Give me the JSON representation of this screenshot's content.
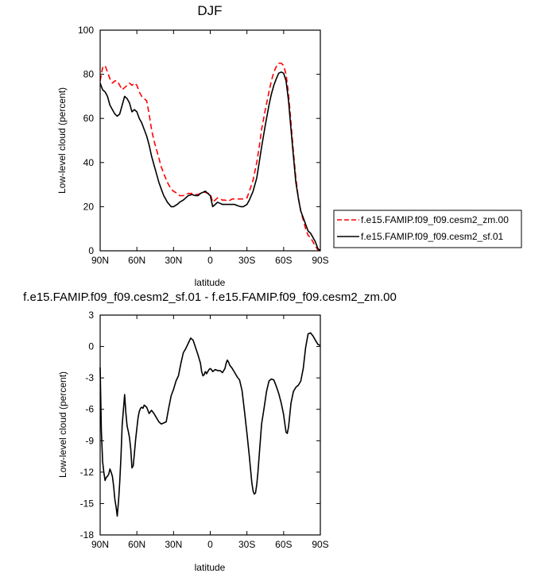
{
  "chart_data": [
    {
      "type": "line",
      "title": "DJF",
      "xlabel": "latitude",
      "ylabel": "Low-level cloud (percent)",
      "xlim": [
        90,
        -90
      ],
      "ylim": [
        0,
        100
      ],
      "x_ticks": [
        90,
        60,
        30,
        0,
        -30,
        -60,
        -90
      ],
      "x_tick_labels": [
        "90N",
        "60N",
        "30N",
        "0",
        "30S",
        "60S",
        "90S"
      ],
      "y_ticks": [
        0,
        20,
        40,
        60,
        80,
        100
      ],
      "y_tick_labels": [
        "0",
        "20",
        "40",
        "60",
        "80",
        "100"
      ],
      "legend_position": "right",
      "series": [
        {
          "name": "f.e15.FAMIP.f09_f09.cesm2_zm.00",
          "color": "#ff0000",
          "dash": "dashed",
          "x": [
            90,
            88,
            86,
            84,
            82,
            80,
            78,
            76,
            74,
            72,
            70,
            68,
            66,
            64,
            62,
            60,
            58,
            56,
            54,
            52,
            50,
            48,
            46,
            44,
            42,
            40,
            38,
            35,
            32,
            30,
            27,
            25,
            22,
            20,
            18,
            15,
            12,
            10,
            8,
            6,
            4,
            2,
            0,
            -2,
            -4,
            -6,
            -8,
            -10,
            -12,
            -15,
            -18,
            -20,
            -22,
            -25,
            -27,
            -30,
            -32,
            -35,
            -38,
            -40,
            -42,
            -45,
            -48,
            -50,
            -52,
            -54,
            -56,
            -58,
            -60,
            -62,
            -64,
            -66,
            -68,
            -70,
            -72,
            -74,
            -76,
            -78,
            -80,
            -82,
            -84,
            -86,
            -88,
            -90
          ],
          "y": [
            77,
            83,
            84,
            81,
            78,
            76,
            77,
            77,
            75,
            73,
            74,
            75,
            76,
            75,
            76,
            75,
            72,
            70,
            69,
            68,
            62,
            55,
            50,
            46,
            42,
            38,
            35,
            31,
            28,
            27,
            26,
            25,
            25,
            25.5,
            26,
            26,
            25.5,
            25.5,
            26,
            26.5,
            26.5,
            26,
            26,
            22,
            23,
            24,
            23.5,
            23,
            23,
            22.5,
            23.5,
            23.5,
            23.5,
            23.5,
            23.5,
            24,
            27,
            32,
            40,
            47,
            55,
            64,
            72,
            77,
            81,
            83.5,
            85,
            85,
            84,
            80,
            71,
            58,
            45,
            33,
            24,
            18,
            14,
            10,
            7,
            6,
            4,
            2,
            0.5,
            0
          ]
        },
        {
          "name": "f.e15.FAMIP.f09_f09.cesm2_sf.01",
          "color": "#000000",
          "dash": "solid",
          "x": [
            90,
            88,
            86,
            84,
            82,
            80,
            78,
            76,
            74,
            72,
            70,
            68,
            66,
            64,
            62,
            60,
            58,
            56,
            54,
            52,
            50,
            48,
            46,
            44,
            42,
            40,
            38,
            35,
            32,
            30,
            27,
            25,
            22,
            20,
            18,
            15,
            12,
            10,
            8,
            6,
            4,
            2,
            0,
            -2,
            -4,
            -6,
            -8,
            -10,
            -12,
            -15,
            -18,
            -20,
            -22,
            -25,
            -27,
            -30,
            -32,
            -35,
            -38,
            -40,
            -42,
            -45,
            -48,
            -50,
            -52,
            -54,
            -56,
            -58,
            -60,
            -62,
            -64,
            -66,
            -68,
            -70,
            -72,
            -74,
            -76,
            -78,
            -80,
            -82,
            -84,
            -86,
            -88,
            -90
          ],
          "y": [
            76,
            73,
            72,
            70,
            66,
            64,
            62,
            61,
            62,
            66,
            70,
            69,
            67,
            63,
            64,
            63,
            60,
            58,
            55,
            52,
            48,
            43,
            39,
            35,
            31,
            28,
            25,
            22,
            20,
            20,
            21,
            22,
            23,
            24,
            25,
            25.5,
            25,
            25,
            26,
            26.5,
            27,
            26,
            25,
            20,
            21,
            22,
            21.5,
            21,
            21,
            21,
            21,
            21,
            20.5,
            20,
            20,
            21,
            23,
            27,
            33,
            40,
            47,
            57,
            66,
            71,
            75,
            78,
            80.5,
            81,
            80.5,
            77,
            68,
            55,
            43,
            31,
            24,
            18,
            15,
            12,
            9,
            8,
            6,
            4,
            1,
            0
          ]
        }
      ]
    },
    {
      "type": "line",
      "title": "f.e15.FAMIP.f09_f09.cesm2_sf.01 - f.e15.FAMIP.f09_f09.cesm2_zm.00",
      "xlabel": "latitude",
      "ylabel": "Low-level cloud (percent)",
      "xlim": [
        90,
        -90
      ],
      "ylim": [
        -18,
        3
      ],
      "x_ticks": [
        90,
        60,
        30,
        0,
        -30,
        -60,
        -90
      ],
      "x_tick_labels": [
        "90N",
        "60N",
        "30N",
        "0",
        "30S",
        "60S",
        "90S"
      ],
      "y_ticks": [
        3,
        0,
        -3,
        -6,
        -9,
        -12,
        -15,
        -18
      ],
      "y_tick_labels": [
        "3",
        "0",
        "-3",
        "-6",
        "-9",
        "-12",
        "-15",
        "-18"
      ],
      "series": [
        {
          "name": "",
          "color": "#000000",
          "dash": "solid",
          "x": [
            90,
            89,
            88,
            87,
            86,
            85,
            84,
            83,
            82,
            81,
            80,
            79,
            78,
            77,
            76,
            75,
            74,
            73,
            72,
            71,
            70,
            69,
            68,
            67,
            66,
            65,
            64,
            63,
            62,
            61,
            60,
            59,
            58,
            57,
            56,
            55,
            54,
            52,
            50,
            48,
            46,
            44,
            42,
            40,
            38,
            36,
            34,
            32,
            30,
            28,
            26,
            24,
            22,
            20,
            18,
            16,
            14,
            12,
            10,
            8,
            7,
            6,
            5,
            4,
            3,
            2,
            1,
            0,
            -1,
            -2,
            -4,
            -6,
            -8,
            -10,
            -12,
            -13,
            -14,
            -15,
            -16,
            -18,
            -20,
            -22,
            -24,
            -26,
            -28,
            -30,
            -32,
            -33,
            -34,
            -35,
            -36,
            -37,
            -38,
            -39,
            -40,
            -41,
            -42,
            -44,
            -46,
            -48,
            -50,
            -52,
            -54,
            -56,
            -58,
            -60,
            -61,
            -62,
            -63,
            -64,
            -65,
            -66,
            -68,
            -70,
            -72,
            -74,
            -76,
            -78,
            -80,
            -82,
            -84,
            -86,
            -88,
            -90
          ],
          "y": [
            -2,
            -8,
            -11,
            -12,
            -12.8,
            -12.5,
            -12.4,
            -12.2,
            -11.7,
            -12.0,
            -12.4,
            -13.3,
            -14.6,
            -15.3,
            -16.2,
            -14.8,
            -13.0,
            -10.5,
            -7.5,
            -6.1,
            -4.6,
            -6.3,
            -7.6,
            -8.1,
            -8.7,
            -9.8,
            -11.6,
            -11.4,
            -10.2,
            -8.9,
            -7.8,
            -6.8,
            -6.2,
            -5.9,
            -5.8,
            -5.9,
            -5.6,
            -5.8,
            -6.4,
            -6.1,
            -6.4,
            -6.8,
            -7.2,
            -7.4,
            -7.3,
            -7.2,
            -5.9,
            -4.7,
            -4.1,
            -3.3,
            -2.8,
            -1.6,
            -0.6,
            -0.2,
            0.3,
            0.8,
            0.6,
            -0.1,
            -0.8,
            -1.6,
            -2.4,
            -2.8,
            -2.7,
            -2.4,
            -2.6,
            -2.4,
            -2.2,
            -2.1,
            -2.2,
            -2.4,
            -2.2,
            -2.3,
            -2.3,
            -2.5,
            -2.1,
            -1.6,
            -1.3,
            -1.5,
            -1.8,
            -2.1,
            -2.5,
            -2.9,
            -3.2,
            -4.2,
            -6.2,
            -8.3,
            -10.5,
            -11.8,
            -13.0,
            -13.8,
            -14.1,
            -14.0,
            -13.2,
            -12.0,
            -10.4,
            -8.9,
            -7.4,
            -5.9,
            -4.3,
            -3.3,
            -3.1,
            -3.2,
            -3.8,
            -4.5,
            -5.4,
            -6.5,
            -7.4,
            -8.2,
            -8.3,
            -7.7,
            -6.6,
            -5.4,
            -4.3,
            -3.9,
            -3.7,
            -3.3,
            -2.1,
            -0.1,
            1.2,
            1.3,
            1.0,
            0.6,
            0.2,
            0.1
          ]
        }
      ]
    }
  ]
}
